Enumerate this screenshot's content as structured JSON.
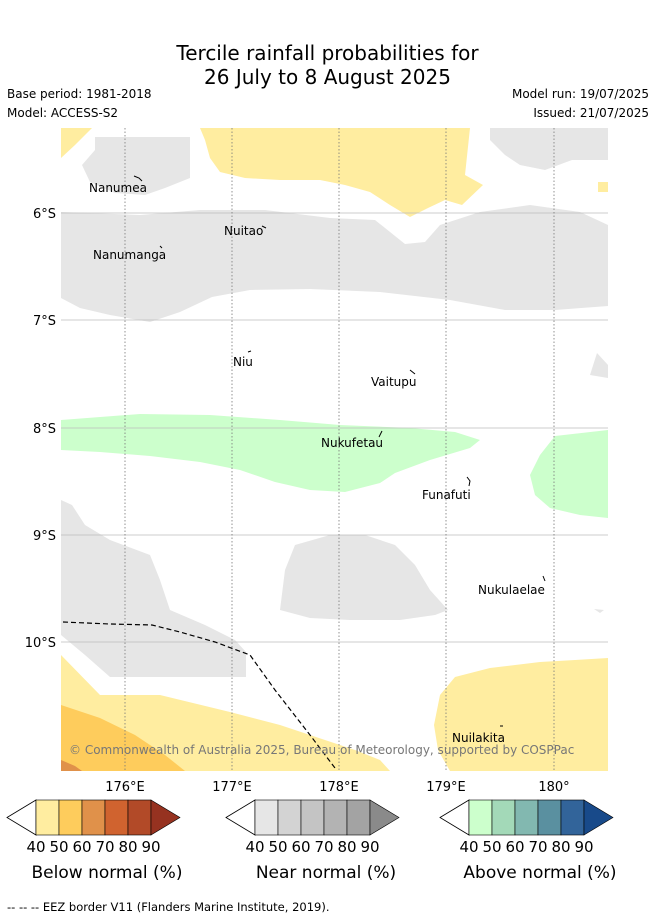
{
  "title": {
    "line1": "Tercile rainfall probabilities for",
    "line2": "26 July to 8 August 2025"
  },
  "meta": {
    "base_period": "Base period: 1981-2018",
    "model": "Model: ACCESS-S2",
    "model_run": "Model run: 19/07/2025",
    "issued": "Issued: 21/07/2025"
  },
  "map": {
    "lat_labels": [
      "6°S",
      "7°S",
      "8°S",
      "9°S",
      "10°S"
    ],
    "lon_labels": [
      "176°E",
      "177°E",
      "178°E",
      "179°E",
      "180°"
    ],
    "places": [
      "Nanumea",
      "Nuitao",
      "Nanumanga",
      "Niu",
      "Vaitupu",
      "Nukufetau",
      "Funafuti",
      "Nukulaelae",
      "Nuilakita"
    ],
    "copyright": "© Commonwealth of Australia 2025, Bureau of Meteorology, supported by COSPPac"
  },
  "legend": {
    "ticks": [
      "40",
      "50",
      "60",
      "70",
      "80",
      "90"
    ],
    "below": {
      "label": "Below normal (%)",
      "colors": [
        "#ffeda0",
        "#fecc5c",
        "#e0914a",
        "#d0632f",
        "#b24a28",
        "#963220"
      ]
    },
    "near": {
      "label": "Near normal (%)",
      "colors": [
        "#e6e6e6",
        "#d3d3d3",
        "#c4c4c4",
        "#b3b3b3",
        "#a3a3a3",
        "#8a8a8a"
      ]
    },
    "above": {
      "label": "Above normal (%)",
      "colors": [
        "#ccffcc",
        "#a3d9b8",
        "#82b8b0",
        "#5a90a0",
        "#32649a",
        "#184a8a"
      ]
    }
  },
  "footer": "--  --  -- EEZ border V11 (Flanders Marine Institute, 2019)."
}
